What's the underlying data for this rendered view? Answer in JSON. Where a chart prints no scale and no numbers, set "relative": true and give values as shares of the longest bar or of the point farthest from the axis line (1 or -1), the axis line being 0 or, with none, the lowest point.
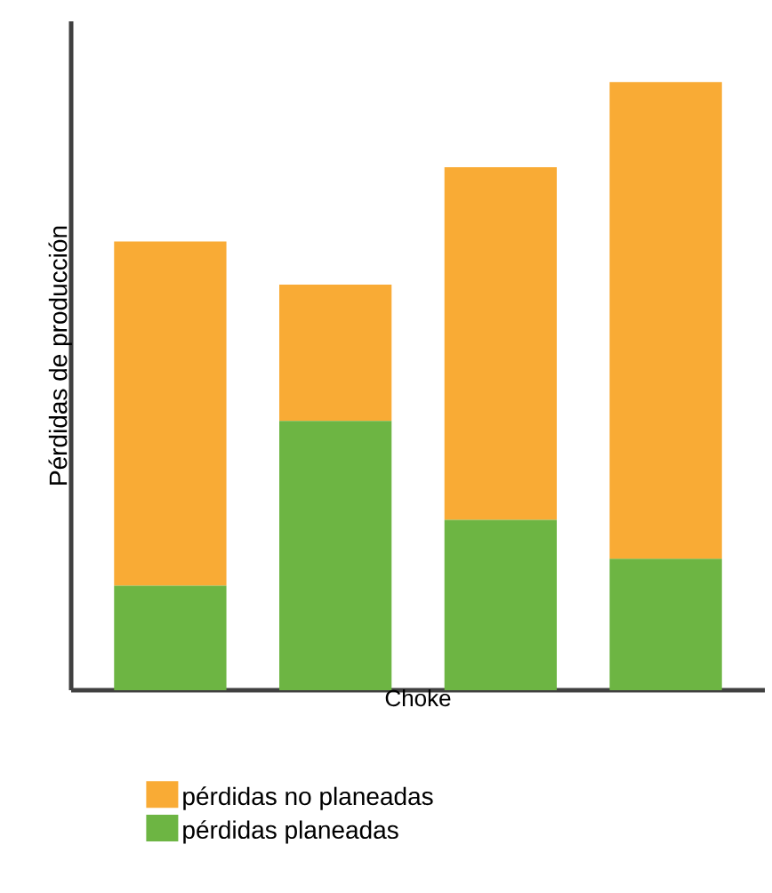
{
  "chart_data": {
    "type": "bar",
    "stacked": true,
    "relative": true,
    "xlabel": "Choke",
    "ylabel": "Pérdidas de producción",
    "legend": "bottom",
    "categories": [
      null,
      null,
      null,
      null
    ],
    "series": [
      {
        "name": "pérdidas planeadas",
        "color": "#6db543",
        "values": [
          0.172,
          0.443,
          0.28,
          0.216
        ]
      },
      {
        "name": "pérdidas no planeadas",
        "color": "#f9ab35",
        "values": [
          0.566,
          0.224,
          0.58,
          0.784
        ]
      }
    ]
  }
}
